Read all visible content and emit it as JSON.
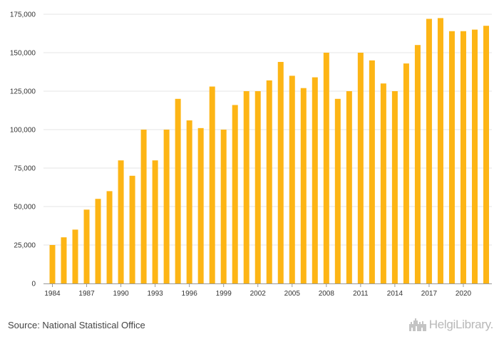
{
  "chart_data": {
    "type": "bar",
    "title": "",
    "xlabel": "",
    "ylabel": "",
    "categories": [
      "1984",
      "1985",
      "1986",
      "1987",
      "1988",
      "1989",
      "1990",
      "1991",
      "1992",
      "1993",
      "1994",
      "1995",
      "1996",
      "1997",
      "1998",
      "1999",
      "2000",
      "2001",
      "2002",
      "2003",
      "2004",
      "2005",
      "2006",
      "2007",
      "2008",
      "2009",
      "2010",
      "2011",
      "2012",
      "2013",
      "2014",
      "2015",
      "2016",
      "2017",
      "2018",
      "2019",
      "2020",
      "2021",
      "2022"
    ],
    "x_tick_labels": [
      "1984",
      "1987",
      "1990",
      "1993",
      "1996",
      "1999",
      "2002",
      "2005",
      "2008",
      "2011",
      "2014",
      "2017",
      "2020"
    ],
    "values": [
      25000,
      30000,
      35000,
      48000,
      55000,
      60000,
      80000,
      70000,
      100000,
      80000,
      100000,
      120000,
      106000,
      101000,
      128000,
      100000,
      116000,
      125000,
      125000,
      132000,
      144000,
      135000,
      127000,
      134000,
      150000,
      120000,
      125000,
      150000,
      145000,
      130000,
      125000,
      143000,
      155000,
      172000,
      172500,
      164000,
      164000,
      165000,
      167500
    ],
    "ylim": [
      0,
      175000
    ],
    "y_ticks": [
      0,
      25000,
      50000,
      75000,
      100000,
      125000,
      150000,
      175000
    ],
    "y_tick_labels": [
      "0",
      "25,000",
      "50,000",
      "75,000",
      "100,000",
      "125,000",
      "150,000",
      "175,000"
    ],
    "bar_color": "#FDB515",
    "grid": true
  },
  "footer": {
    "source": "Source: National Statistical Office",
    "brand": "HelgiLibrary.",
    "brand_icon": "castle-icon"
  }
}
